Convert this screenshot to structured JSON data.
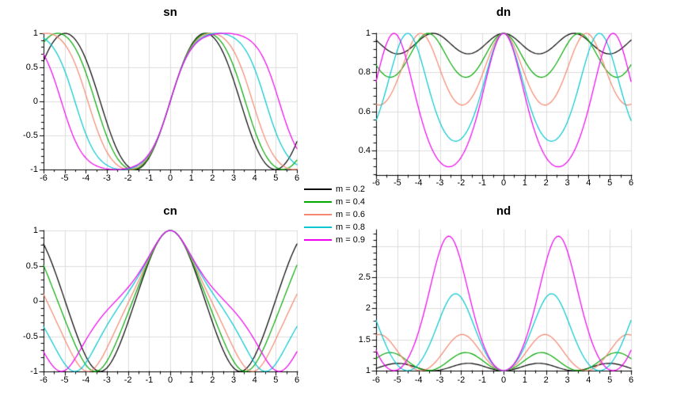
{
  "figure": {
    "background": "#ffffff",
    "grid_color": "#dcdcdc",
    "axis_color": "#000000"
  },
  "legend": {
    "entries": [
      {
        "label": "m = 0.2",
        "color": "#000000"
      },
      {
        "label": "m = 0.4",
        "color": "#00a800"
      },
      {
        "label": "m = 0.6",
        "color": "#f5876f"
      },
      {
        "label": "m = 0.8",
        "color": "#00c6d0"
      },
      {
        "label": "m = 0.9",
        "color": "#ee00ee"
      }
    ]
  },
  "chart_data": [
    {
      "id": "sn",
      "type": "line",
      "title": "sn",
      "function": "jacobi_sn",
      "grid": true,
      "legend_position": "figure-center",
      "x": {
        "min": -6,
        "max": 6,
        "minor_step": 0.5,
        "tick_values": [
          -6,
          -5,
          -4,
          -3,
          -2,
          -1,
          0,
          1,
          2,
          3,
          4,
          5,
          6
        ],
        "tick_labels": [
          "-6",
          "-5",
          "-4",
          "-3",
          "-2",
          "-1",
          "0",
          "1",
          "2",
          "3",
          "4",
          "5",
          "6"
        ]
      },
      "y": {
        "min": -1,
        "max": 1,
        "minor_step": 0.1,
        "tick_values": [
          1,
          0.5,
          0,
          -0.5,
          -1
        ],
        "tick_labels": [
          "1",
          "0.5",
          "0",
          "-0.5",
          "-1"
        ]
      },
      "series": [
        {
          "label": "m = 0.2",
          "m": 0.2,
          "color": "#000000"
        },
        {
          "label": "m = 0.4",
          "m": 0.4,
          "color": "#00a800"
        },
        {
          "label": "m = 0.6",
          "m": 0.6,
          "color": "#f5876f"
        },
        {
          "label": "m = 0.8",
          "m": 0.8,
          "color": "#00c6d0"
        },
        {
          "label": "m = 0.9",
          "m": 0.9,
          "color": "#ee00ee"
        }
      ]
    },
    {
      "id": "dn",
      "type": "line",
      "title": "dn",
      "function": "jacobi_dn",
      "grid": true,
      "x": {
        "min": -6,
        "max": 6,
        "minor_step": 0.5,
        "tick_values": [
          -6,
          -5,
          -4,
          -3,
          -2,
          -1,
          0,
          1,
          2,
          3,
          4,
          5,
          6
        ],
        "tick_labels": [
          "-6",
          "-5",
          "-4",
          "-3",
          "-2",
          "-1",
          "0",
          "1",
          "2",
          "3",
          "4",
          "5",
          "6"
        ]
      },
      "y": {
        "min": 0.2744,
        "max": 1,
        "minor_step": 0.04,
        "tick_values": [
          1,
          0.8,
          0.6,
          0.4
        ],
        "tick_labels": [
          "1",
          "0.8",
          "0.6",
          "0.4"
        ]
      },
      "series": [
        {
          "label": "m = 0.2",
          "m": 0.2,
          "color": "#000000"
        },
        {
          "label": "m = 0.4",
          "m": 0.4,
          "color": "#00a800"
        },
        {
          "label": "m = 0.6",
          "m": 0.6,
          "color": "#f5876f"
        },
        {
          "label": "m = 0.8",
          "m": 0.8,
          "color": "#00c6d0"
        },
        {
          "label": "m = 0.9",
          "m": 0.9,
          "color": "#ee00ee"
        }
      ]
    },
    {
      "id": "cn",
      "type": "line",
      "title": "cn",
      "function": "jacobi_cn",
      "grid": true,
      "x": {
        "min": -6,
        "max": 6,
        "minor_step": 0.5,
        "tick_values": [
          -6,
          -5,
          -4,
          -3,
          -2,
          -1,
          0,
          1,
          2,
          3,
          4,
          5,
          6
        ],
        "tick_labels": [
          "-6",
          "-5",
          "-4",
          "-3",
          "-2",
          "-1",
          "0",
          "1",
          "2",
          "3",
          "4",
          "5",
          "6"
        ]
      },
      "y": {
        "min": -1,
        "max": 1,
        "minor_step": 0.1,
        "tick_values": [
          1,
          0.5,
          0,
          -0.5,
          -1
        ],
        "tick_labels": [
          "1",
          "0.5",
          "0",
          "-0.5",
          "-1"
        ]
      },
      "series": [
        {
          "label": "m = 0.2",
          "m": 0.2,
          "color": "#000000"
        },
        {
          "label": "m = 0.4",
          "m": 0.4,
          "color": "#00a800"
        },
        {
          "label": "m = 0.6",
          "m": 0.6,
          "color": "#f5876f"
        },
        {
          "label": "m = 0.8",
          "m": 0.8,
          "color": "#00c6d0"
        },
        {
          "label": "m = 0.9",
          "m": 0.9,
          "color": "#ee00ee"
        }
      ]
    },
    {
      "id": "nd",
      "type": "line",
      "title": "nd",
      "function": "jacobi_nd",
      "grid": true,
      "x": {
        "min": -6,
        "max": 6,
        "minor_step": 0.5,
        "tick_values": [
          -6,
          -5,
          -4,
          -3,
          -2,
          -1,
          0,
          1,
          2,
          3,
          4,
          5,
          6
        ],
        "tick_labels": [
          "-6",
          "-5",
          "-4",
          "-3",
          "-2",
          "-1",
          "0",
          "1",
          "2",
          "3",
          "4",
          "5",
          "6"
        ]
      },
      "y": {
        "min": 1,
        "max": 3.265,
        "minor_step": 0.1,
        "tick_values": [
          1,
          1.5,
          2,
          2.5,
          3
        ],
        "tick_labels": [
          "1",
          "1.5",
          "2",
          "2.5",
          ""
        ]
      },
      "series": [
        {
          "label": "m = 0.2",
          "m": 0.2,
          "color": "#000000"
        },
        {
          "label": "m = 0.4",
          "m": 0.4,
          "color": "#00a800"
        },
        {
          "label": "m = 0.6",
          "m": 0.6,
          "color": "#f5876f"
        },
        {
          "label": "m = 0.8",
          "m": 0.8,
          "color": "#00c6d0"
        },
        {
          "label": "m = 0.9",
          "m": 0.9,
          "color": "#ee00ee"
        }
      ]
    }
  ]
}
